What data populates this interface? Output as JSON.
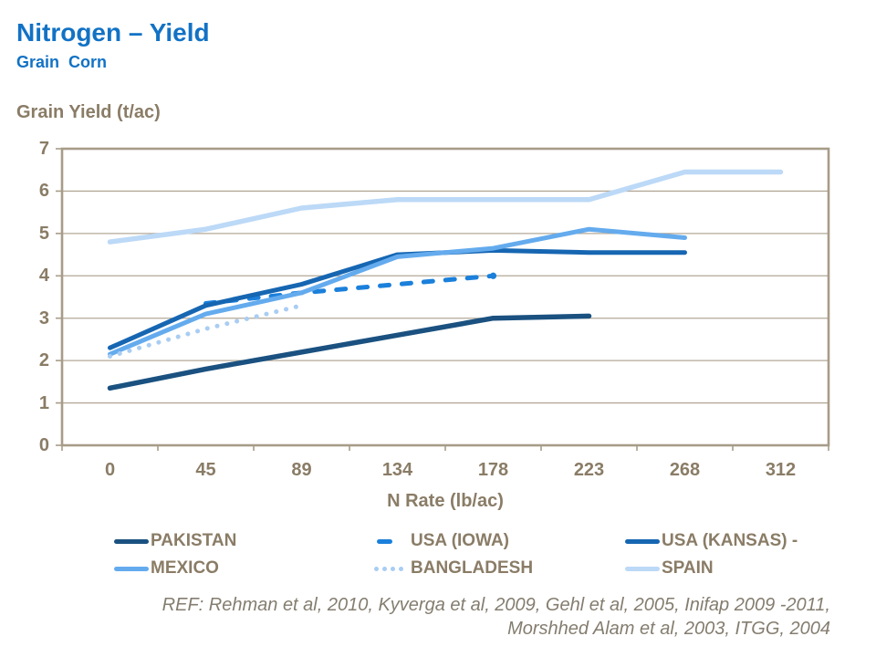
{
  "header": {
    "title": "Nitrogen – Yield",
    "subtitle": "Grain Corn"
  },
  "chart_data": {
    "type": "line",
    "title": "Nitrogen – Yield (Grain Corn)",
    "xlabel": "N Rate (lb/ac)",
    "ylabel": "Grain Yield (t/ac)",
    "x_categories": [
      "0",
      "45",
      "89",
      "134",
      "178",
      "223",
      "268",
      "312"
    ],
    "y_ticks": [
      0,
      1,
      2,
      3,
      4,
      5,
      6,
      7
    ],
    "ylim": [
      0,
      7
    ],
    "grid": true,
    "legend_position": "bottom",
    "series": [
      {
        "name": "PAKISTAN",
        "color": "#1A5180",
        "style": "solid",
        "width": 5.5,
        "values": [
          1.35,
          1.8,
          2.2,
          2.6,
          3.0,
          3.05,
          null,
          null
        ]
      },
      {
        "name": "USA (IOWA)",
        "color": "#1B80DB",
        "style": "dashed",
        "width": 5,
        "values": [
          null,
          3.35,
          3.6,
          3.8,
          4.0,
          null,
          null,
          null
        ]
      },
      {
        "name": "USA (KANSAS) -",
        "color": "#1666B2",
        "style": "solid",
        "width": 5,
        "values": [
          2.3,
          3.3,
          3.8,
          4.5,
          4.6,
          4.55,
          4.55,
          null
        ]
      },
      {
        "name": "MEXICO",
        "color": "#64ABEE",
        "style": "solid",
        "width": 5,
        "values": [
          2.15,
          3.1,
          3.6,
          4.45,
          4.65,
          5.1,
          4.9,
          null
        ]
      },
      {
        "name": "BANGLADESH",
        "color": "#A9CDF3",
        "style": "dotted",
        "width": 5,
        "values": [
          2.1,
          2.75,
          3.3,
          null,
          null,
          null,
          null,
          null
        ]
      },
      {
        "name": "SPAIN",
        "color": "#BCD9F7",
        "style": "solid",
        "width": 5.5,
        "values": [
          4.8,
          5.1,
          5.6,
          5.8,
          5.8,
          5.8,
          6.45,
          6.45
        ]
      }
    ],
    "legend_order": [
      "PAKISTAN",
      "USA (IOWA)",
      "USA (KANSAS) -",
      "MEXICO",
      "BANGLADESH",
      "SPAIN"
    ]
  },
  "footer": {
    "ref_line1": "REF: Rehman et al, 2010, Kyverga et al, 2009, Gehl et al, 2005, Inifap 2009 -2011,",
    "ref_line2": "Morshhed Alam et al, 2003, ITGG, 2004"
  },
  "colors": {
    "title_blue": "#1272C5",
    "axis_text": "#8A7C66",
    "grid": "#B3A897",
    "axis": "#A79C88",
    "footer_text": "#847D6F"
  }
}
